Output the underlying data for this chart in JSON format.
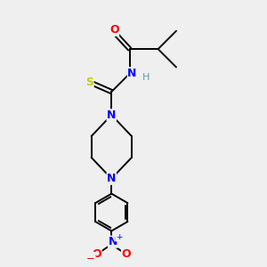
{
  "bg_color": "#efefef",
  "atom_colors": {
    "C": "#000000",
    "N": "#0000ff",
    "O": "#ff0000",
    "S": "#cccc00",
    "H": "#5f9ea0"
  },
  "figsize": [
    3.0,
    3.0
  ],
  "dpi": 100,
  "lw": 1.4,
  "fs": 8.5
}
